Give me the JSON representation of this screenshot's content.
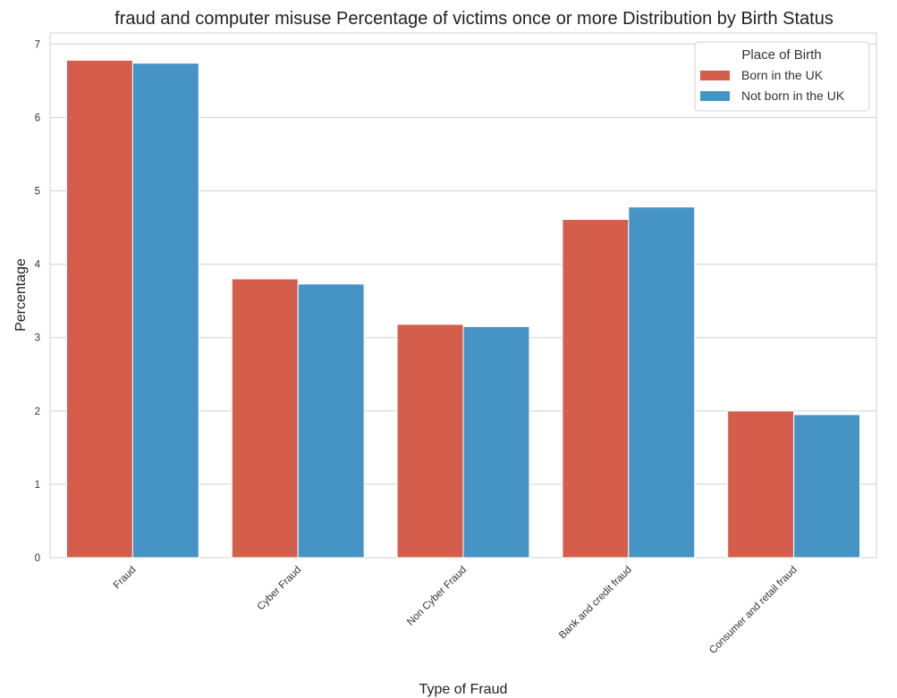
{
  "chart_data": {
    "type": "bar",
    "title": "fraud and computer misuse Percentage of victims once or more Distribution by Birth Status",
    "xlabel": "Type of Fraud",
    "ylabel": "Percentage",
    "categories": [
      "Fraud",
      "Cyber Fraud",
      "Non Cyber Fraud",
      "Bank and credit fraud",
      "Consumer and retail fraud"
    ],
    "series": [
      {
        "name": "Born in the UK",
        "color": "#d45d4c",
        "values": [
          6.78,
          3.8,
          3.18,
          4.61,
          2.0
        ]
      },
      {
        "name": "Not born in the UK",
        "color": "#4694c6",
        "values": [
          6.74,
          3.73,
          3.15,
          4.78,
          1.95
        ]
      }
    ],
    "ylim": [
      0,
      7.15
    ],
    "yticks": [
      0,
      1,
      2,
      3,
      4,
      5,
      6,
      7
    ],
    "grid": true,
    "legend": {
      "title": "Place of Birth",
      "placement": "top-right"
    },
    "xtick_rotation_deg": 45
  }
}
